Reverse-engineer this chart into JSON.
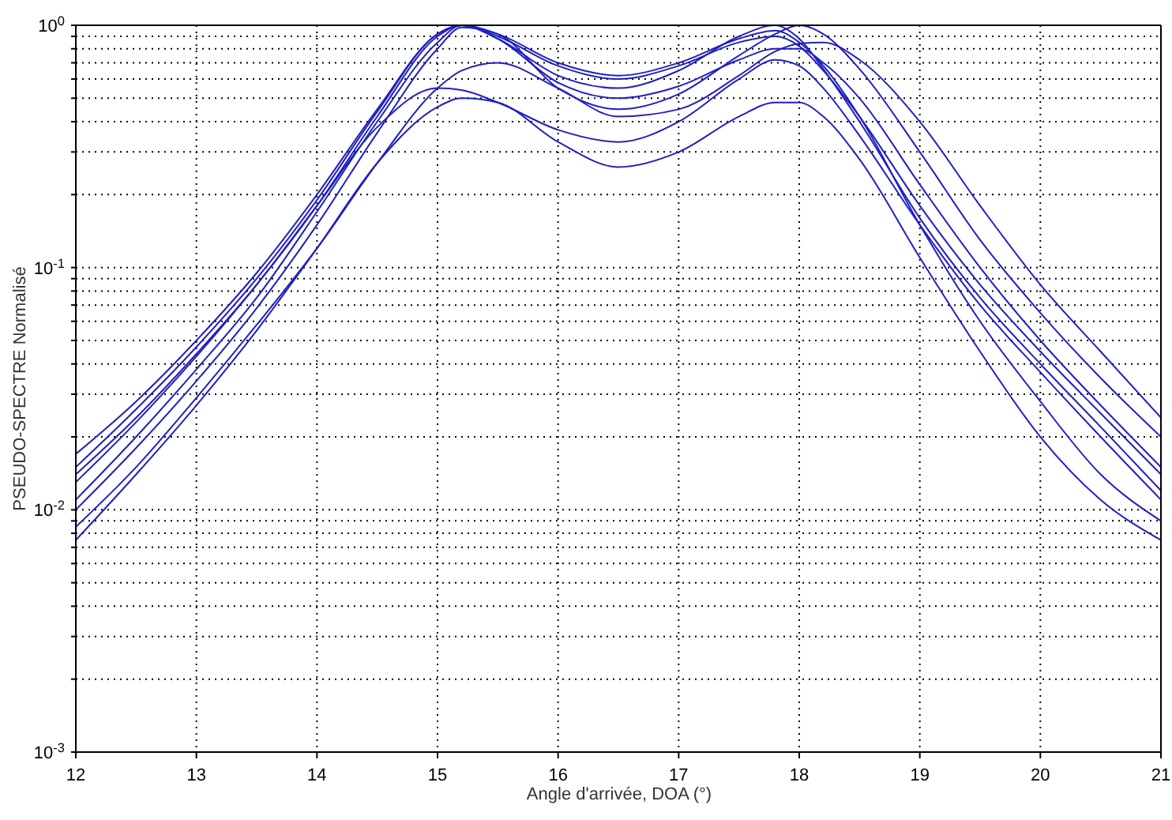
{
  "chart_data": {
    "type": "line",
    "xlabel": "Angle d'arrivée, DOA (°)",
    "ylabel": "PSEUDO-SPECTRE Normalisé",
    "log": "y",
    "grid": true,
    "line_style": "solid",
    "marker": "none",
    "x": [
      12,
      12.5,
      13,
      13.5,
      14,
      14.5,
      15,
      15.2,
      15.5,
      16,
      16.5,
      17,
      17.5,
      17.8,
      18,
      18.2,
      18.5,
      19,
      19.5,
      20,
      20.5,
      21
    ],
    "xlim": [
      12,
      21
    ],
    "xticks": [
      12,
      13,
      14,
      15,
      16,
      17,
      18,
      19,
      20,
      21
    ],
    "ylim": [
      0.001,
      1
    ],
    "yticks": [
      {
        "value": 0.001,
        "label": "10$^{-3}$"
      },
      {
        "value": 0.002,
        "label": null
      },
      {
        "value": 0.003,
        "label": null
      },
      {
        "value": 0.004,
        "label": null
      },
      {
        "value": 0.005,
        "label": null
      },
      {
        "value": 0.006,
        "label": null
      },
      {
        "value": 0.007,
        "label": null
      },
      {
        "value": 0.008,
        "label": null
      },
      {
        "value": 0.009,
        "label": null
      },
      {
        "value": 0.01,
        "label": "10$^{-2}$"
      },
      {
        "value": 0.02,
        "label": null
      },
      {
        "value": 0.03,
        "label": null
      },
      {
        "value": 0.04,
        "label": null
      },
      {
        "value": 0.05,
        "label": null
      },
      {
        "value": 0.06,
        "label": null
      },
      {
        "value": 0.07,
        "label": null
      },
      {
        "value": 0.08,
        "label": null
      },
      {
        "value": 0.09,
        "label": null
      },
      {
        "value": 0.1,
        "label": "10$^{-1}$"
      },
      {
        "value": 0.2,
        "label": null
      },
      {
        "value": 0.3,
        "label": null
      },
      {
        "value": 0.4,
        "label": null
      },
      {
        "value": 0.5,
        "label": null
      },
      {
        "value": 0.6,
        "label": null
      },
      {
        "value": 0.7,
        "label": null
      },
      {
        "value": 0.8,
        "label": null
      },
      {
        "value": 0.9,
        "label": null
      },
      {
        "value": 1,
        "label": "10$^{0}$"
      }
    ],
    "series": [
      {
        "color": "#2020c0",
        "values": [
          0.017,
          0.028,
          0.05,
          0.095,
          0.2,
          0.45,
          0.92,
          1,
          0.9,
          0.68,
          0.6,
          0.68,
          0.85,
          0.9,
          0.82,
          0.65,
          0.42,
          0.18,
          0.085,
          0.045,
          0.025,
          0.014
        ]
      },
      {
        "color": "#2020c0",
        "values": [
          0.014,
          0.024,
          0.044,
          0.085,
          0.18,
          0.42,
          0.9,
          1,
          0.88,
          0.62,
          0.55,
          0.65,
          0.9,
          1,
          0.88,
          0.66,
          0.4,
          0.16,
          0.075,
          0.04,
          0.022,
          0.012
        ]
      },
      {
        "color": "#2020c0",
        "values": [
          0.011,
          0.02,
          0.038,
          0.075,
          0.17,
          0.4,
          0.85,
          1,
          0.88,
          0.58,
          0.5,
          0.56,
          0.72,
          0.8,
          0.8,
          0.7,
          0.5,
          0.22,
          0.1,
          0.05,
          0.027,
          0.015
        ]
      },
      {
        "color": "#2020c0",
        "values": [
          0.01,
          0.018,
          0.034,
          0.068,
          0.15,
          0.36,
          0.8,
          0.98,
          0.92,
          0.55,
          0.45,
          0.52,
          0.75,
          0.92,
          1,
          0.92,
          0.66,
          0.3,
          0.13,
          0.065,
          0.035,
          0.02
        ]
      },
      {
        "color": "#2020c0",
        "values": [
          0.0085,
          0.015,
          0.029,
          0.058,
          0.12,
          0.27,
          0.55,
          0.65,
          0.7,
          0.55,
          0.42,
          0.45,
          0.62,
          0.78,
          0.84,
          0.85,
          0.72,
          0.4,
          0.18,
          0.085,
          0.045,
          0.024
        ]
      },
      {
        "color": "#2020c0",
        "values": [
          0.013,
          0.023,
          0.043,
          0.085,
          0.18,
          0.38,
          0.55,
          0.54,
          0.48,
          0.37,
          0.33,
          0.4,
          0.6,
          0.72,
          0.68,
          0.55,
          0.35,
          0.15,
          0.07,
          0.037,
          0.02,
          0.011
        ]
      },
      {
        "color": "#2020c0",
        "values": [
          0.0075,
          0.014,
          0.027,
          0.055,
          0.12,
          0.27,
          0.46,
          0.5,
          0.48,
          0.33,
          0.26,
          0.3,
          0.42,
          0.48,
          0.48,
          0.42,
          0.28,
          0.11,
          0.045,
          0.02,
          0.011,
          0.0075
        ]
      },
      {
        "color": "#2020c0",
        "values": [
          0.015,
          0.026,
          0.047,
          0.09,
          0.19,
          0.44,
          0.92,
          1,
          0.92,
          0.7,
          0.62,
          0.7,
          0.88,
          0.95,
          0.85,
          0.68,
          0.42,
          0.15,
          0.06,
          0.028,
          0.014,
          0.009
        ]
      }
    ]
  }
}
